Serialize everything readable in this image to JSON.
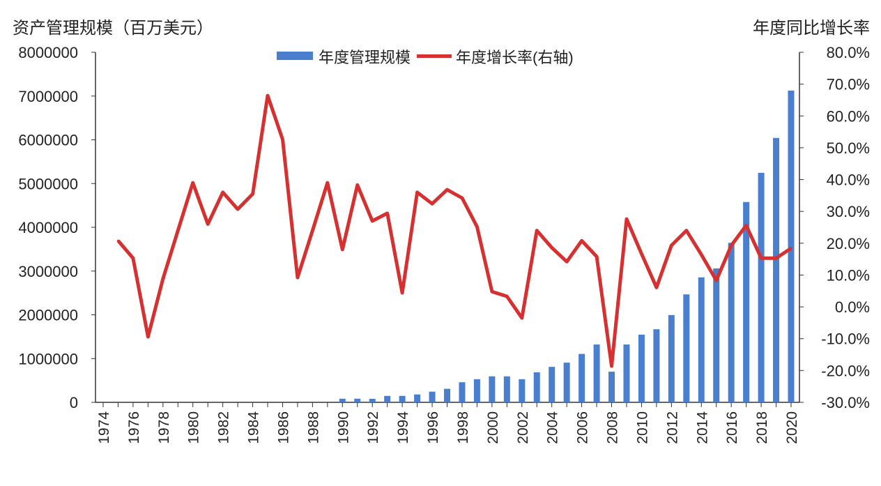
{
  "chart_data": {
    "type": "bar+line",
    "left_axis_title": "资产管理规模（百万美元）",
    "right_axis_title": "年度同比增长率",
    "legend": [
      "年度管理规模",
      "年度增长率(右轴)"
    ],
    "legend_placement": "top-center",
    "colors": {
      "bars": "#4a7fcf",
      "line": "#d63030"
    },
    "grid": false,
    "y_left": {
      "range": [
        0,
        8000000
      ],
      "ticks": [
        "0",
        "1000000",
        "2000000",
        "3000000",
        "4000000",
        "5000000",
        "6000000",
        "7000000",
        "8000000"
      ]
    },
    "y_right": {
      "range": [
        -30,
        80
      ],
      "ticks": [
        "-30.0%",
        "-20.0%",
        "-10.0%",
        "0.0%",
        "10.0%",
        "20.0%",
        "30.0%",
        "40.0%",
        "50.0%",
        "60.0%",
        "70.0%",
        "80.0%"
      ]
    },
    "x_tick_labels": [
      "1974",
      "1976",
      "1978",
      "1980",
      "1982",
      "1984",
      "1986",
      "1988",
      "1990",
      "1992",
      "1994",
      "1996",
      "1998",
      "2000",
      "2002",
      "2004",
      "2006",
      "2008",
      "2010",
      "2012",
      "2014",
      "2016",
      "2018",
      "2020"
    ],
    "series": [
      {
        "name": "年度管理规模",
        "type": "bar",
        "axis": "left",
        "x": [
          1990,
          1991,
          1992,
          1993,
          1994,
          1995,
          1996,
          1997,
          1998,
          1999,
          2000,
          2001,
          2002,
          2003,
          2004,
          2005,
          2006,
          2007,
          2008,
          2009,
          2010,
          2011,
          2012,
          2013,
          2014,
          2015,
          2016,
          2017,
          2018,
          2019,
          2020
        ],
        "values": [
          83000,
          83000,
          80000,
          147000,
          147000,
          180000,
          244000,
          309000,
          459000,
          529000,
          594000,
          594000,
          529000,
          685000,
          810000,
          907000,
          1106000,
          1321000,
          700000,
          1321000,
          1547000,
          1670000,
          1994000,
          2467000,
          2856000,
          3060000,
          3646000,
          4578000,
          5246000,
          6043000,
          7125000
        ]
      },
      {
        "name": "年度增长率(右轴)",
        "type": "line",
        "axis": "right",
        "x": [
          1975,
          1976,
          1977,
          1978,
          1979,
          1980,
          1981,
          1982,
          1983,
          1984,
          1985,
          1986,
          1987,
          1988,
          1989,
          1990,
          1991,
          1992,
          1993,
          1994,
          1995,
          1996,
          1997,
          1998,
          1999,
          2000,
          2001,
          2002,
          2003,
          2004,
          2005,
          2006,
          2007,
          2008,
          2009,
          2010,
          2011,
          2012,
          2013,
          2014,
          2015,
          2016,
          2017,
          2018,
          2019,
          2020
        ],
        "values": [
          20.8,
          15.3,
          -9.4,
          8.8,
          24,
          39,
          26,
          36,
          30.7,
          35.5,
          66.4,
          52.6,
          9.2,
          24,
          39,
          18,
          38.3,
          27,
          29.4,
          4.4,
          36,
          32.4,
          36.8,
          34.2,
          25.2,
          4.8,
          3.3,
          -3.5,
          24,
          18.6,
          14.2,
          20.8,
          15.8,
          -18.6,
          27.6,
          16.7,
          6.1,
          19.3,
          24,
          16.4,
          8.3,
          19.3,
          25.6,
          15.3,
          15.3,
          18.4
        ]
      }
    ]
  }
}
